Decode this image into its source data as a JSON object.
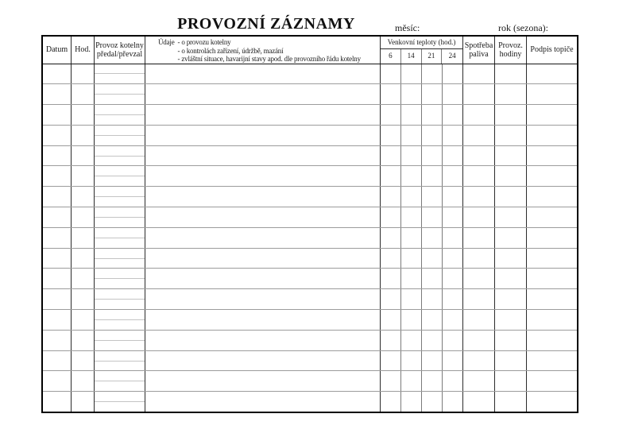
{
  "page": {
    "title": "PROVOZNÍ ZÁZNAMY",
    "month_label": "měsíc:",
    "year_label": "rok (sezona):"
  },
  "table": {
    "header": {
      "datum": "Datum",
      "hod": "Hod.",
      "provoz_kotelny_line1": "Provoz kotelny",
      "provoz_kotelny_line2": "předal/převzal",
      "udaje_label": "Údaje",
      "udaje_items": [
        "- o provozu kotelny",
        "- o kontrolách zařízení, údržbě, mazání",
        "- zvláštní situace, havarijní stavy apod. dle provozního řádu kotelny"
      ],
      "venkovni_teploty": "Venkovní teploty (hod.)",
      "teploty_hours": [
        "6",
        "14",
        "21",
        "24"
      ],
      "spotreba_line1": "Spotřeba",
      "spotreba_line2": "paliva",
      "provoz_hodiny_line1": "Provoz.",
      "provoz_hodiny_line2": "hodiny",
      "podpis_topice": "Podpis topiče"
    },
    "body": {
      "row_count": 17,
      "provoz_subrows": 2
    }
  }
}
